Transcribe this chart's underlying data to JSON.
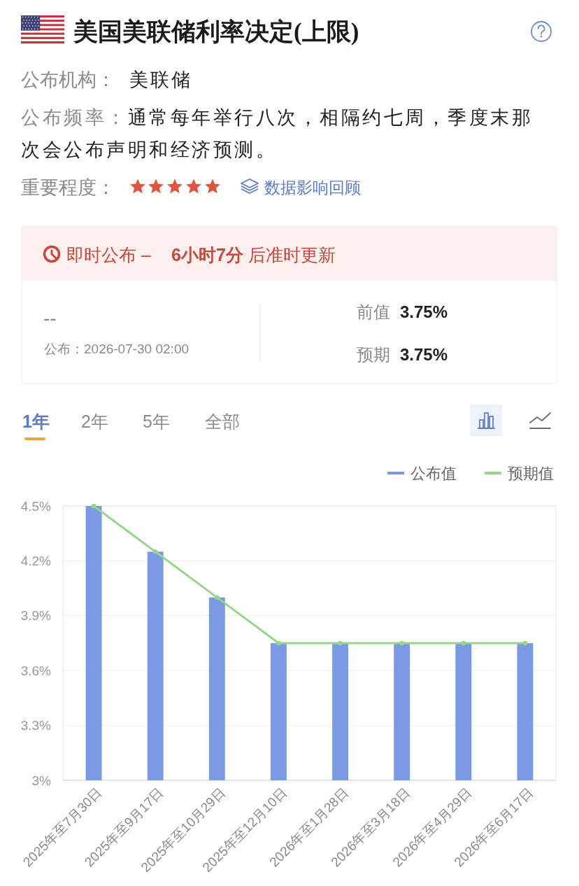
{
  "chart_data": [
    {
      "type": "other",
      "title": "美国美联储利率决定(上限)",
      "annotations": [
        "公布机构：",
        "美联储",
        "公布频率：通常每年举行八次，相隔约七周，季度末那次会公布声明和经济预测。",
        "重要程度：",
        "数据影响回顾",
        "即时公布 –",
        "6小时7分",
        "后准时更新",
        "--",
        "公布：2026-07-30 02:00",
        "前值",
        "3.75%",
        "预期",
        "3.75%"
      ]
    },
    {
      "type": "bar",
      "categories": [
        "2025年至7月30日",
        "2025年至9月17日",
        "2025年至10月29日",
        "2025年至12月10日",
        "2026年至1月28日",
        "2026年至3月18日",
        "2026年至4月29日",
        "2026年至6月17日"
      ],
      "series": [
        {
          "name": "公布值",
          "type": "bar",
          "color": "#7b9ae3",
          "values": [
            4.5,
            4.25,
            4,
            3.75,
            3.75,
            3.75,
            3.75,
            3.75
          ]
        },
        {
          "name": "预期值",
          "type": "line",
          "color": "#96d68b",
          "values": [
            4.5,
            4.25,
            4,
            3.75,
            3.75,
            3.75,
            3.75,
            3.75
          ]
        }
      ],
      "ylim": [
        3,
        4.5
      ],
      "yticks": [
        {
          "value": 3,
          "label": "3%"
        },
        {
          "value": 3.3,
          "label": "3.3%"
        },
        {
          "value": 3.6,
          "label": "3.6%"
        },
        {
          "value": 3.9,
          "label": "3.9%"
        },
        {
          "value": 4.2,
          "label": "4.2%"
        },
        {
          "value": 4.5,
          "label": "4.5%"
        }
      ],
      "grid": "y",
      "legend": "top right",
      "marker": "circle",
      "annotations": [
        "1年",
        "2年",
        "5年",
        "全部"
      ]
    }
  ]
}
